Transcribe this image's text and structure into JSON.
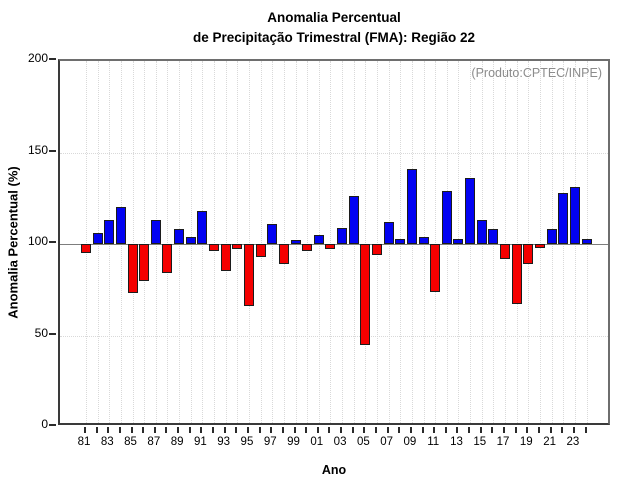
{
  "header": {
    "title_line1": "Anomalia Percentual",
    "title_line2": "de Precipitação Trimestral (FMA): Região 22"
  },
  "annotation": "(Produto:CPTEC/INPE)",
  "chart_data": {
    "type": "bar",
    "title": "Anomalia Percentual de Precipitação Trimestral (FMA): Região 22",
    "xlabel": "Ano",
    "ylabel": "Anomalia Percentual (%)",
    "ylim": [
      0,
      200
    ],
    "yticks": [
      0,
      50,
      100,
      150,
      200
    ],
    "baseline": 100,
    "grid": {
      "horizontal_dotted_at": [
        50,
        150
      ],
      "vertical_dotted": "every year",
      "baseline_solid_at": 100
    },
    "legend": "none",
    "colors": {
      "above_baseline": "#0202f2",
      "below_baseline": "#f40000",
      "bar_border": "#1c1c1c",
      "grid": "#d9d9d9",
      "annotation_text": "#8c8c8c"
    },
    "categories": [
      "81",
      "82",
      "83",
      "84",
      "85",
      "86",
      "87",
      "88",
      "89",
      "90",
      "91",
      "92",
      "93",
      "94",
      "95",
      "96",
      "97",
      "98",
      "99",
      "00",
      "01",
      "02",
      "03",
      "04",
      "05",
      "06",
      "07",
      "08",
      "09",
      "10",
      "11",
      "12",
      "13",
      "14",
      "15",
      "16",
      "17",
      "18",
      "19",
      "20",
      "21",
      "22",
      "23",
      "24"
    ],
    "values": [
      95,
      106,
      113,
      120,
      73,
      80,
      113,
      84,
      108,
      104,
      118,
      96,
      85,
      97,
      66,
      93,
      111,
      89,
      102,
      96,
      105,
      97,
      109,
      126,
      45,
      94,
      112,
      103,
      141,
      104,
      74,
      129,
      103,
      136,
      113,
      108,
      92,
      67,
      89,
      98,
      108,
      128,
      131,
      103
    ],
    "x_labels_shown": [
      "81",
      "83",
      "85",
      "87",
      "89",
      "91",
      "93",
      "95",
      "97",
      "99",
      "01",
      "03",
      "05",
      "07",
      "09",
      "11",
      "13",
      "15",
      "17",
      "19",
      "21",
      "23"
    ]
  }
}
